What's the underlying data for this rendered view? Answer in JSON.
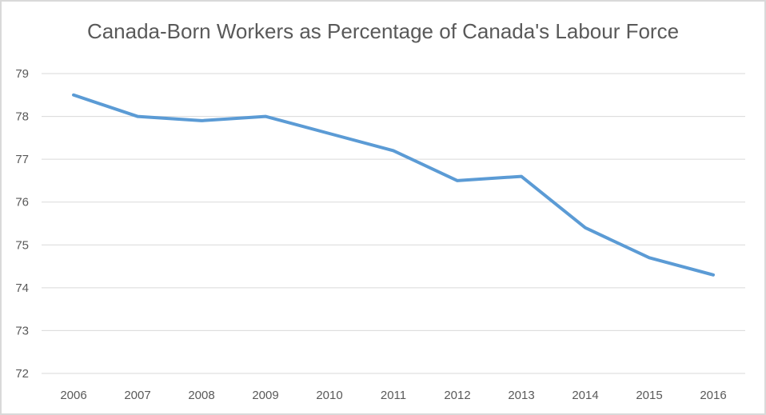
{
  "chart_data": {
    "type": "line",
    "title": "Canada-Born Workers as Percentage of Canada's Labour Force",
    "categories": [
      "2006",
      "2007",
      "2008",
      "2009",
      "2010",
      "2011",
      "2012",
      "2013",
      "2014",
      "2015",
      "2016"
    ],
    "values": [
      78.5,
      78.0,
      77.9,
      78.0,
      77.6,
      77.2,
      76.5,
      76.6,
      75.4,
      74.7,
      74.3
    ],
    "xlabel": "",
    "ylabel": "",
    "ylim": [
      72,
      79
    ],
    "yticks": [
      72,
      73,
      74,
      75,
      76,
      77,
      78,
      79
    ],
    "grid": true,
    "legend_position": "none",
    "colors": {
      "line": "#5B9BD5",
      "gridline": "#D9D9D9",
      "tick_label": "#595959",
      "title": "#595959",
      "background": "#FFFFFF",
      "frame_border": "#D9D9D9"
    }
  }
}
